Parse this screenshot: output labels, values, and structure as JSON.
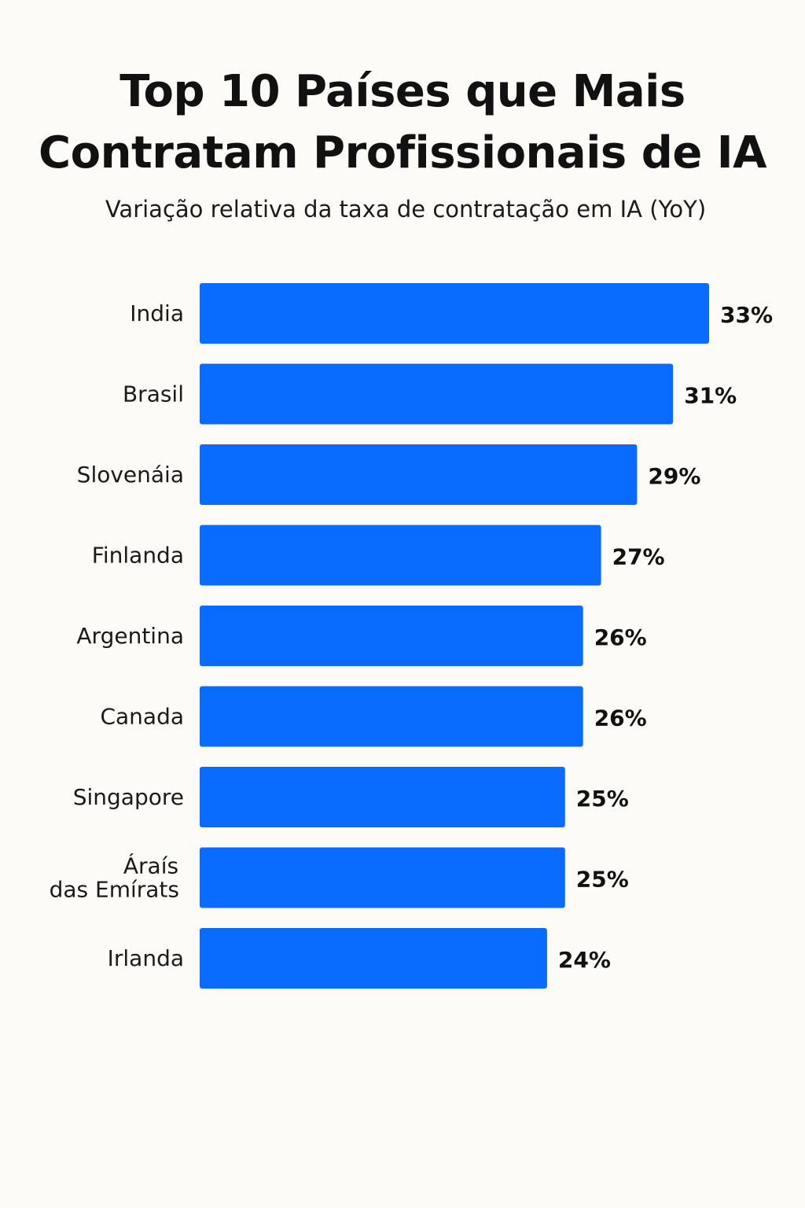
{
  "chart_data": {
    "type": "bar",
    "orientation": "horizontal",
    "title_lines": [
      "Top 10 Países que Mais",
      "Contratam Profissionais de IA"
    ],
    "subtitle": "Variação relativa da taxa de contratação em IA (YoY)",
    "categories": [
      [
        "India"
      ],
      [
        "Brasil"
      ],
      [
        "Slovenáia"
      ],
      [
        "Finlanda"
      ],
      [
        "Argentina"
      ],
      [
        "Canada"
      ],
      [
        "Singapore"
      ],
      [
        "Áraís",
        "das Emírats"
      ],
      [
        "Irlanda"
      ]
    ],
    "values": [
      33,
      31,
      29,
      27,
      26,
      26,
      25,
      25,
      24
    ],
    "value_labels": [
      "33%",
      "31%",
      "29%",
      "27%",
      "26%",
      "26%",
      "25%",
      "25%",
      "24%"
    ],
    "unit": "%",
    "bar_color": "#0a6cff",
    "grid": false,
    "legend": "none"
  }
}
